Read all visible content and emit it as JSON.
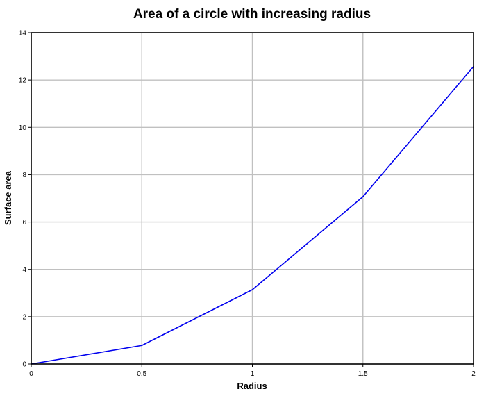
{
  "chart_data": {
    "type": "line",
    "title": "Area of a circle with increasing radius",
    "xlabel": "Radius",
    "ylabel": "Surface area",
    "xlim": [
      0,
      2
    ],
    "ylim": [
      0,
      14
    ],
    "x_ticks": [
      0,
      0.5,
      1,
      1.5,
      2
    ],
    "x_tick_labels": [
      "0",
      "0.5",
      "1",
      "1.5",
      "2"
    ],
    "y_ticks": [
      0,
      2,
      4,
      6,
      8,
      10,
      12,
      14
    ],
    "y_tick_labels": [
      "0",
      "2",
      "4",
      "6",
      "8",
      "10",
      "12",
      "14"
    ],
    "grid": true,
    "legend": false,
    "series": [
      {
        "color": "#0000ee",
        "x": [
          0,
          0.5,
          1,
          1.5,
          2
        ],
        "y": [
          0,
          0.785,
          3.14,
          7.07,
          12.57
        ]
      }
    ]
  }
}
